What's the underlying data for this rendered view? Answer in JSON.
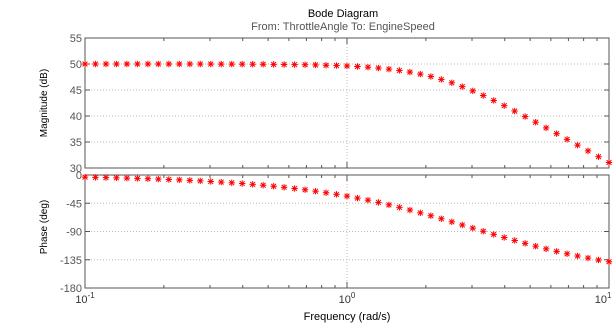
{
  "chart_data": {
    "type": "line",
    "title": "Bode Diagram",
    "subtitle": "From: ThrottleAngle  To: EngineSpeed",
    "xlabel": "Frequency  (rad/s)",
    "x_scale": "log",
    "xlim": [
      0.1,
      10
    ],
    "x_ticks": [
      {
        "base": "10",
        "exp": "-1",
        "value": 0.1
      },
      {
        "base": "10",
        "exp": "0",
        "value": 1
      },
      {
        "base": "10",
        "exp": "1",
        "value": 10
      }
    ],
    "marker": "*",
    "marker_color": "#ff0000",
    "grid": true,
    "x": [
      0.1,
      0.1096,
      0.1202,
      0.1318,
      0.1445,
      0.1585,
      0.1738,
      0.1905,
      0.2089,
      0.2291,
      0.2512,
      0.2754,
      0.302,
      0.3311,
      0.3631,
      0.3981,
      0.4365,
      0.4786,
      0.5248,
      0.5754,
      0.631,
      0.6918,
      0.7586,
      0.8318,
      0.912,
      1.0,
      1.0965,
      1.2023,
      1.3183,
      1.4454,
      1.5849,
      1.7378,
      1.9055,
      2.0893,
      2.2909,
      2.5119,
      2.7542,
      3.02,
      3.3113,
      3.6308,
      3.9811,
      4.3652,
      4.7863,
      5.2481,
      5.7544,
      6.3096,
      6.9183,
      7.5858,
      8.3176,
      9.1201,
      10.0
    ],
    "panels": [
      {
        "name": "magnitude",
        "ylabel": "Magnitude (dB)",
        "ylim": [
          30,
          55
        ],
        "yticks": [
          {
            "label": "55",
            "value": 55
          },
          {
            "label": "50",
            "value": 50
          },
          {
            "label": "45",
            "value": 45
          },
          {
            "label": "40",
            "value": 40
          },
          {
            "label": "35",
            "value": 35
          },
          {
            "label": "30",
            "value": 30
          }
        ],
        "values": [
          50.0,
          50.0,
          50.0,
          50.0,
          50.0,
          50.0,
          50.0,
          50.0,
          50.0,
          50.0,
          50.0,
          49.99,
          49.99,
          49.98,
          49.98,
          49.97,
          49.96,
          49.95,
          49.93,
          49.91,
          49.89,
          49.86,
          49.82,
          49.76,
          49.7,
          49.62,
          49.52,
          49.39,
          49.22,
          49.02,
          48.76,
          48.45,
          48.06,
          47.59,
          47.03,
          46.39,
          45.65,
          44.83,
          43.94,
          42.99,
          41.99,
          40.95,
          39.89,
          38.81,
          37.71,
          36.61,
          35.51,
          34.4,
          33.29,
          32.17,
          31.06
        ]
      },
      {
        "name": "phase",
        "ylabel": "Phase (deg)",
        "ylim": [
          -180,
          0
        ],
        "yticks": [
          {
            "label": "0",
            "value": 0
          },
          {
            "label": "-45",
            "value": -45
          },
          {
            "label": "-90",
            "value": -90
          },
          {
            "label": "-135",
            "value": -135
          },
          {
            "label": "-180",
            "value": -180
          }
        ],
        "values": [
          -3.4,
          -3.8,
          -4.1,
          -4.5,
          -4.9,
          -5.4,
          -5.9,
          -6.5,
          -7.1,
          -7.8,
          -8.6,
          -9.4,
          -10.3,
          -11.3,
          -12.4,
          -13.6,
          -14.9,
          -16.3,
          -17.9,
          -19.6,
          -21.5,
          -23.5,
          -25.8,
          -28.2,
          -30.8,
          -33.7,
          -36.8,
          -40.1,
          -43.7,
          -47.5,
          -51.5,
          -55.8,
          -60.3,
          -64.9,
          -69.7,
          -74.6,
          -79.6,
          -84.6,
          -89.6,
          -94.6,
          -99.5,
          -104.3,
          -108.9,
          -113.4,
          -117.6,
          -121.7,
          -125.5,
          -129.0,
          -132.3,
          -135.4,
          -138.2
        ]
      }
    ]
  }
}
